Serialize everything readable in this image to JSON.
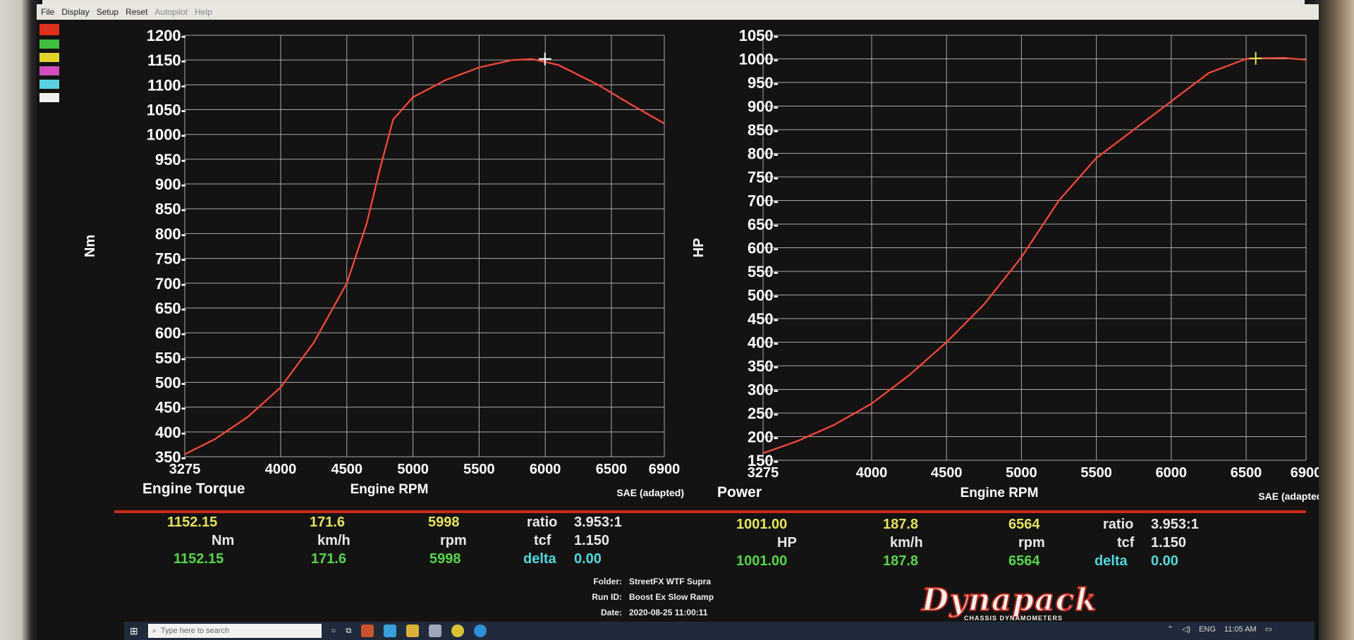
{
  "menu": [
    "File",
    "Display",
    "Setup",
    "Reset",
    "Autopilot",
    "Help"
  ],
  "colors": {
    "curve": "#ff4a3a",
    "grid": "#cfcfcf",
    "axis_text": "#ffffff",
    "divider": "#c92a1a"
  },
  "color_strip": [
    "#e0311f",
    "#3fbf3f",
    "#e3d22a",
    "#d04fbf",
    "#5ad0e0",
    "#f0f0f0"
  ],
  "chart_data": [
    {
      "type": "line",
      "title": "Engine Torque",
      "xlabel": "Engine RPM",
      "ylabel": "Nm",
      "note": "SAE (adapted)",
      "xlim": [
        3275,
        6900
      ],
      "ylim": [
        350,
        1200
      ],
      "x_ticks": [
        3275,
        4000,
        4500,
        5000,
        5500,
        6000,
        6500,
        6900
      ],
      "y_ticks": [
        350,
        400,
        450,
        500,
        550,
        600,
        650,
        700,
        750,
        800,
        850,
        900,
        950,
        1000,
        1050,
        1100,
        1150,
        1200
      ],
      "series": [
        {
          "x": [
            3275,
            3500,
            3750,
            4000,
            4250,
            4500,
            4650,
            4750,
            4850,
            5000,
            5250,
            5500,
            5750,
            5900,
            6100,
            6400,
            6650,
            6900
          ],
          "y": [
            355,
            385,
            430,
            490,
            580,
            700,
            820,
            930,
            1030,
            1075,
            1110,
            1135,
            1150,
            1152,
            1140,
            1100,
            1060,
            1022
          ]
        }
      ],
      "cursor": {
        "x": 5998,
        "y": 1152.15
      }
    },
    {
      "type": "line",
      "title": "Power",
      "xlabel": "Engine RPM",
      "ylabel": "HP",
      "note": "SAE (adapted)",
      "xlim": [
        3275,
        6900
      ],
      "ylim": [
        150,
        1050
      ],
      "x_ticks": [
        3275,
        4000,
        4500,
        5000,
        5500,
        6000,
        6500,
        6900
      ],
      "y_ticks": [
        150,
        200,
        250,
        300,
        350,
        400,
        450,
        500,
        550,
        600,
        650,
        700,
        750,
        800,
        850,
        900,
        950,
        1000,
        1050
      ],
      "series": [
        {
          "x": [
            3275,
            3500,
            3750,
            4000,
            4250,
            4500,
            4750,
            5000,
            5250,
            5500,
            5750,
            6000,
            6250,
            6500,
            6564,
            6750,
            6900
          ],
          "y": [
            165,
            190,
            225,
            270,
            330,
            400,
            480,
            580,
            700,
            790,
            850,
            910,
            970,
            1000,
            1001,
            1002,
            998
          ]
        }
      ],
      "cursor": {
        "x": 6564,
        "y": 1001.0
      }
    }
  ],
  "torque_readout": {
    "value_yellow": "1152.15",
    "speed_yellow": "171.6",
    "rpm_yellow": "5998",
    "unit_nm": "Nm",
    "unit_kmh": "km/h",
    "unit_rpm": "rpm",
    "value_green": "1152.15",
    "speed_green": "171.6",
    "rpm_green": "5998",
    "ratio_label": "ratio",
    "ratio_value": "3.953:1",
    "tcf_label": "tcf",
    "tcf_value": "1.150",
    "delta_label": "delta",
    "delta_value": "0.00"
  },
  "power_readout": {
    "value_yellow": "1001.00",
    "speed_yellow": "187.8",
    "rpm_yellow": "6564",
    "unit_hp": "HP",
    "unit_kmh": "km/h",
    "unit_rpm": "rpm",
    "value_green": "1001.00",
    "speed_green": "187.8",
    "rpm_green": "6564",
    "ratio_label": "ratio",
    "ratio_value": "3.953:1",
    "tcf_label": "tcf",
    "tcf_value": "1.150",
    "delta_label": "delta",
    "delta_value": "0.00"
  },
  "run_info": {
    "folder_label": "Folder:",
    "folder_value": "StreetFX WTF Supra",
    "runid_label": "Run ID:",
    "runid_value": "Boost Ex Slow Ramp",
    "date_label": "Date:",
    "date_value": "2020-08-25 11:00:11"
  },
  "logo": {
    "main": "Dynapack",
    "sub": "CHASSIS DYNAMOMETERS"
  },
  "taskbar": {
    "search_placeholder": "Type here to search",
    "lang": "ENG",
    "time": "11:05 AM"
  }
}
